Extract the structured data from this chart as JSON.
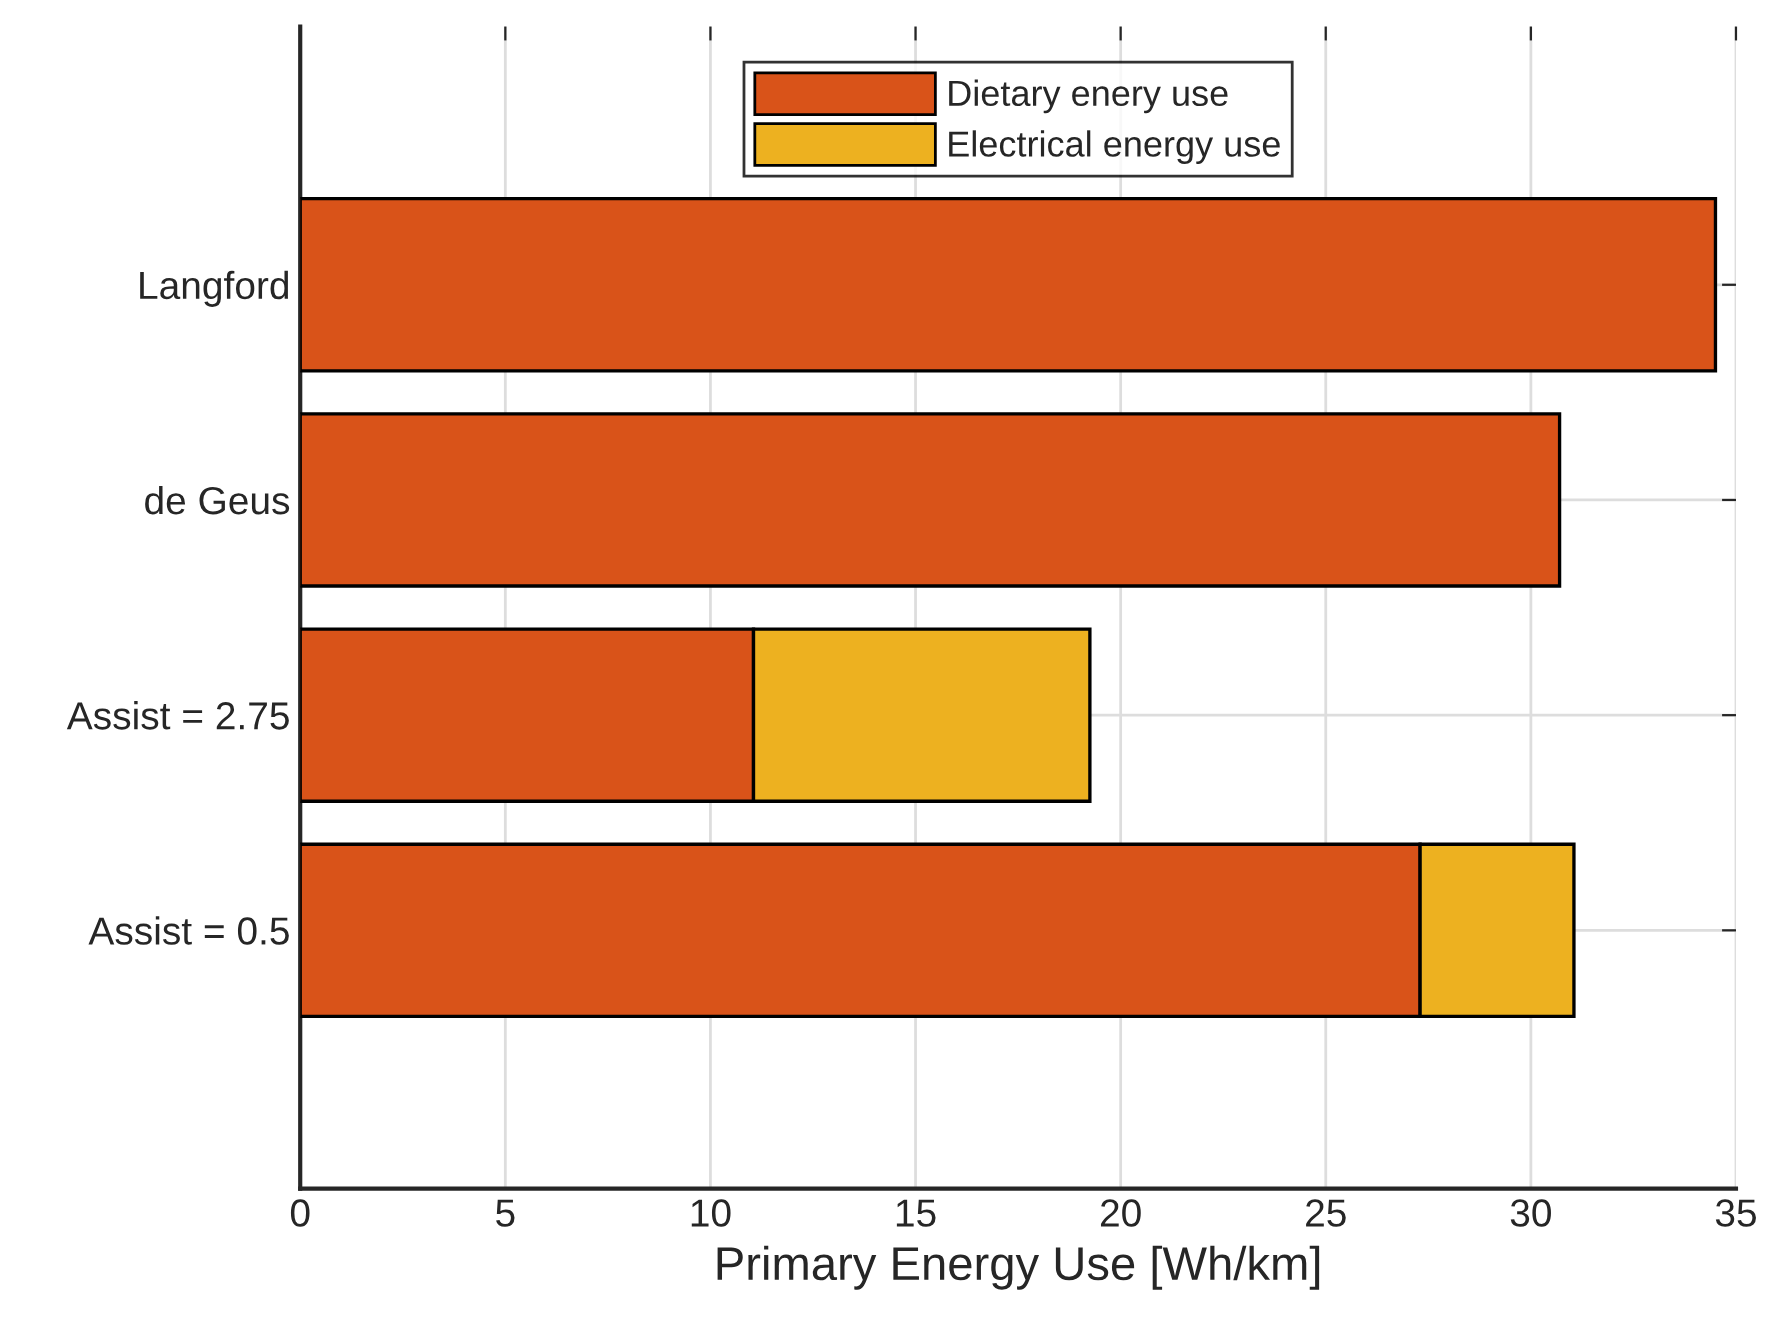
{
  "chart_data": {
    "type": "bar",
    "orientation": "horizontal",
    "stacked": true,
    "categories": [
      null,
      "Langford",
      "de Geus",
      "Assist = 2.75",
      "Assist = 0.5",
      null
    ],
    "series": [
      {
        "name": "Dietary enery use",
        "color": "#d95319",
        "values": [
          null,
          34.5,
          30.7,
          11.05,
          27.3,
          null
        ]
      },
      {
        "name": "Electrical energy use",
        "color": "#edb120",
        "values": [
          null,
          null,
          null,
          8.2,
          3.75,
          null
        ]
      }
    ],
    "xlabel": "Primary Energy Use [Wh/km]",
    "xlim": [
      0,
      35
    ],
    "xticks": [
      0,
      5,
      10,
      15,
      20,
      25,
      30,
      35
    ],
    "grid": true,
    "legend": "top"
  }
}
